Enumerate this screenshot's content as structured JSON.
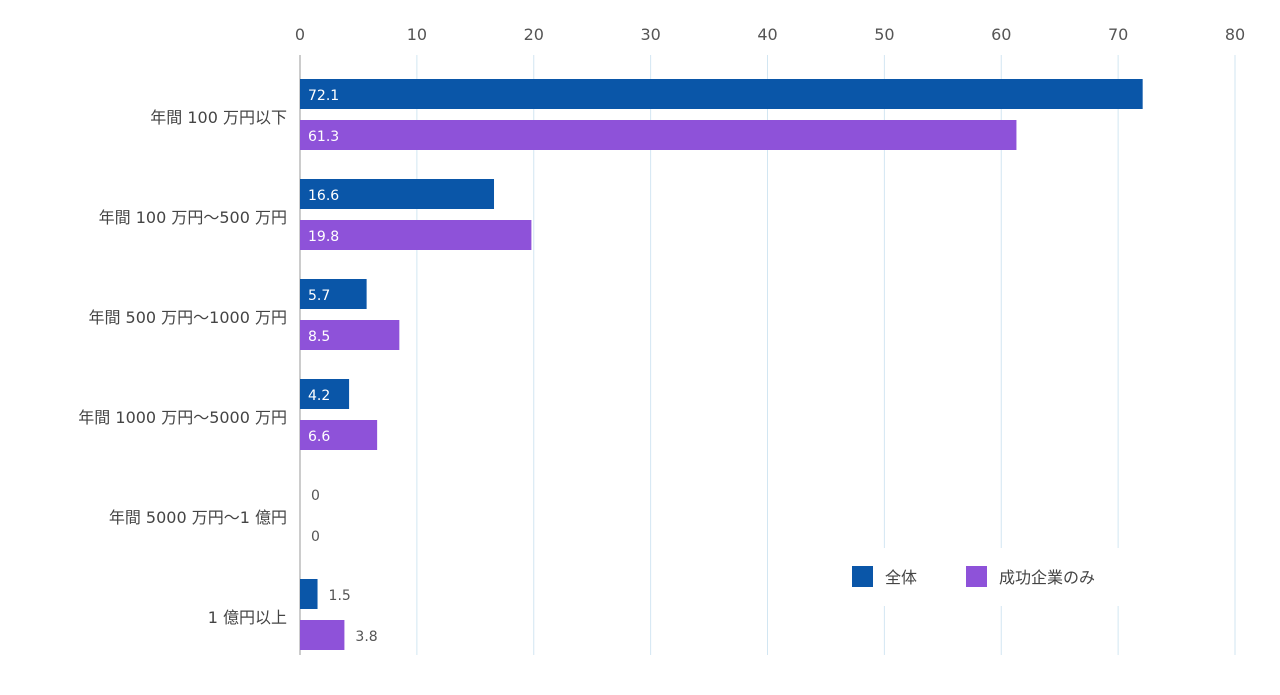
{
  "chart_data": {
    "type": "bar",
    "orientation": "horizontal",
    "categories": [
      "年間 100 万円以下",
      "年間 100 万円〜500 万円",
      "年間 500 万円〜1000 万円",
      "年間 1000 万円〜5000 万円",
      "年間 5000 万円〜1 億円",
      "1 億円以上"
    ],
    "series": [
      {
        "name": "全体",
        "color": "#0a56a8",
        "values": [
          72.1,
          16.6,
          5.7,
          4.2,
          0,
          1.5
        ]
      },
      {
        "name": "成功企業のみ",
        "color": "#8e52d9",
        "values": [
          61.3,
          19.8,
          8.5,
          6.6,
          0,
          3.8
        ]
      }
    ],
    "x_ticks": [
      0,
      10,
      20,
      30,
      40,
      50,
      60,
      70,
      80
    ],
    "xlim": [
      0,
      80
    ],
    "xaxis_position": "top",
    "grid": true,
    "legend_position": "bottom-right",
    "data_labels": true,
    "title": "",
    "xlabel": "",
    "ylabel": ""
  }
}
